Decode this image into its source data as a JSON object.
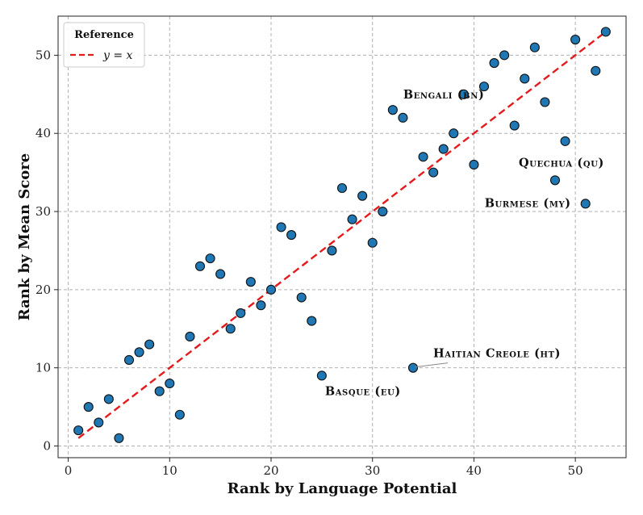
{
  "chart_data": {
    "type": "scatter",
    "xlabel": "Rank by Language Potential",
    "ylabel": "Rank by Mean Score",
    "xlim": [
      -1,
      55
    ],
    "ylim": [
      -1.5,
      55
    ],
    "xticks": [
      0,
      10,
      20,
      30,
      40,
      50
    ],
    "yticks": [
      0,
      10,
      20,
      30,
      40,
      50
    ],
    "grid": true,
    "legend": {
      "title": "Reference",
      "placement": "top-left",
      "entries": [
        {
          "label": "y = x",
          "style": "dashed-red-line"
        }
      ]
    },
    "reference_line": {
      "from": [
        1,
        1
      ],
      "to": [
        53,
        53
      ],
      "color": "#e41a1c"
    },
    "point_color": "#1f77b4",
    "points": [
      {
        "x": 1,
        "y": 2
      },
      {
        "x": 2,
        "y": 5
      },
      {
        "x": 3,
        "y": 3
      },
      {
        "x": 4,
        "y": 6
      },
      {
        "x": 5,
        "y": 1
      },
      {
        "x": 6,
        "y": 11
      },
      {
        "x": 7,
        "y": 12
      },
      {
        "x": 8,
        "y": 13
      },
      {
        "x": 9,
        "y": 7
      },
      {
        "x": 10,
        "y": 8
      },
      {
        "x": 11,
        "y": 4
      },
      {
        "x": 12,
        "y": 14
      },
      {
        "x": 13,
        "y": 23
      },
      {
        "x": 14,
        "y": 24
      },
      {
        "x": 15,
        "y": 22
      },
      {
        "x": 16,
        "y": 15
      },
      {
        "x": 17,
        "y": 17
      },
      {
        "x": 18,
        "y": 21
      },
      {
        "x": 19,
        "y": 18
      },
      {
        "x": 20,
        "y": 20
      },
      {
        "x": 21,
        "y": 28
      },
      {
        "x": 22,
        "y": 27
      },
      {
        "x": 23,
        "y": 19
      },
      {
        "x": 24,
        "y": 16
      },
      {
        "x": 25,
        "y": 9
      },
      {
        "x": 26,
        "y": 25
      },
      {
        "x": 27,
        "y": 33
      },
      {
        "x": 28,
        "y": 29
      },
      {
        "x": 29,
        "y": 32
      },
      {
        "x": 30,
        "y": 26
      },
      {
        "x": 31,
        "y": 30
      },
      {
        "x": 32,
        "y": 43
      },
      {
        "x": 33,
        "y": 42
      },
      {
        "x": 34,
        "y": 10
      },
      {
        "x": 35,
        "y": 37
      },
      {
        "x": 36,
        "y": 35
      },
      {
        "x": 37,
        "y": 38
      },
      {
        "x": 38,
        "y": 40
      },
      {
        "x": 39,
        "y": 45
      },
      {
        "x": 40,
        "y": 36
      },
      {
        "x": 41,
        "y": 46
      },
      {
        "x": 42,
        "y": 49
      },
      {
        "x": 43,
        "y": 50
      },
      {
        "x": 44,
        "y": 41
      },
      {
        "x": 45,
        "y": 47
      },
      {
        "x": 46,
        "y": 51
      },
      {
        "x": 47,
        "y": 44
      },
      {
        "x": 48,
        "y": 34
      },
      {
        "x": 49,
        "y": 39
      },
      {
        "x": 50,
        "y": 52
      },
      {
        "x": 51,
        "y": 31
      },
      {
        "x": 52,
        "y": 48
      },
      {
        "x": 53,
        "y": 53
      }
    ],
    "annotations": [
      {
        "text": "Bengali (bn)",
        "x": 32,
        "y": 43
      },
      {
        "text": "Quechua (qu)",
        "x": 48,
        "y": 34
      },
      {
        "text": "Burmese (my)",
        "x": 51,
        "y": 31
      },
      {
        "text": "Haitian Creole (ht)",
        "x": 34,
        "y": 10
      },
      {
        "text": "Basque (eu)",
        "x": 25,
        "y": 9
      }
    ]
  }
}
